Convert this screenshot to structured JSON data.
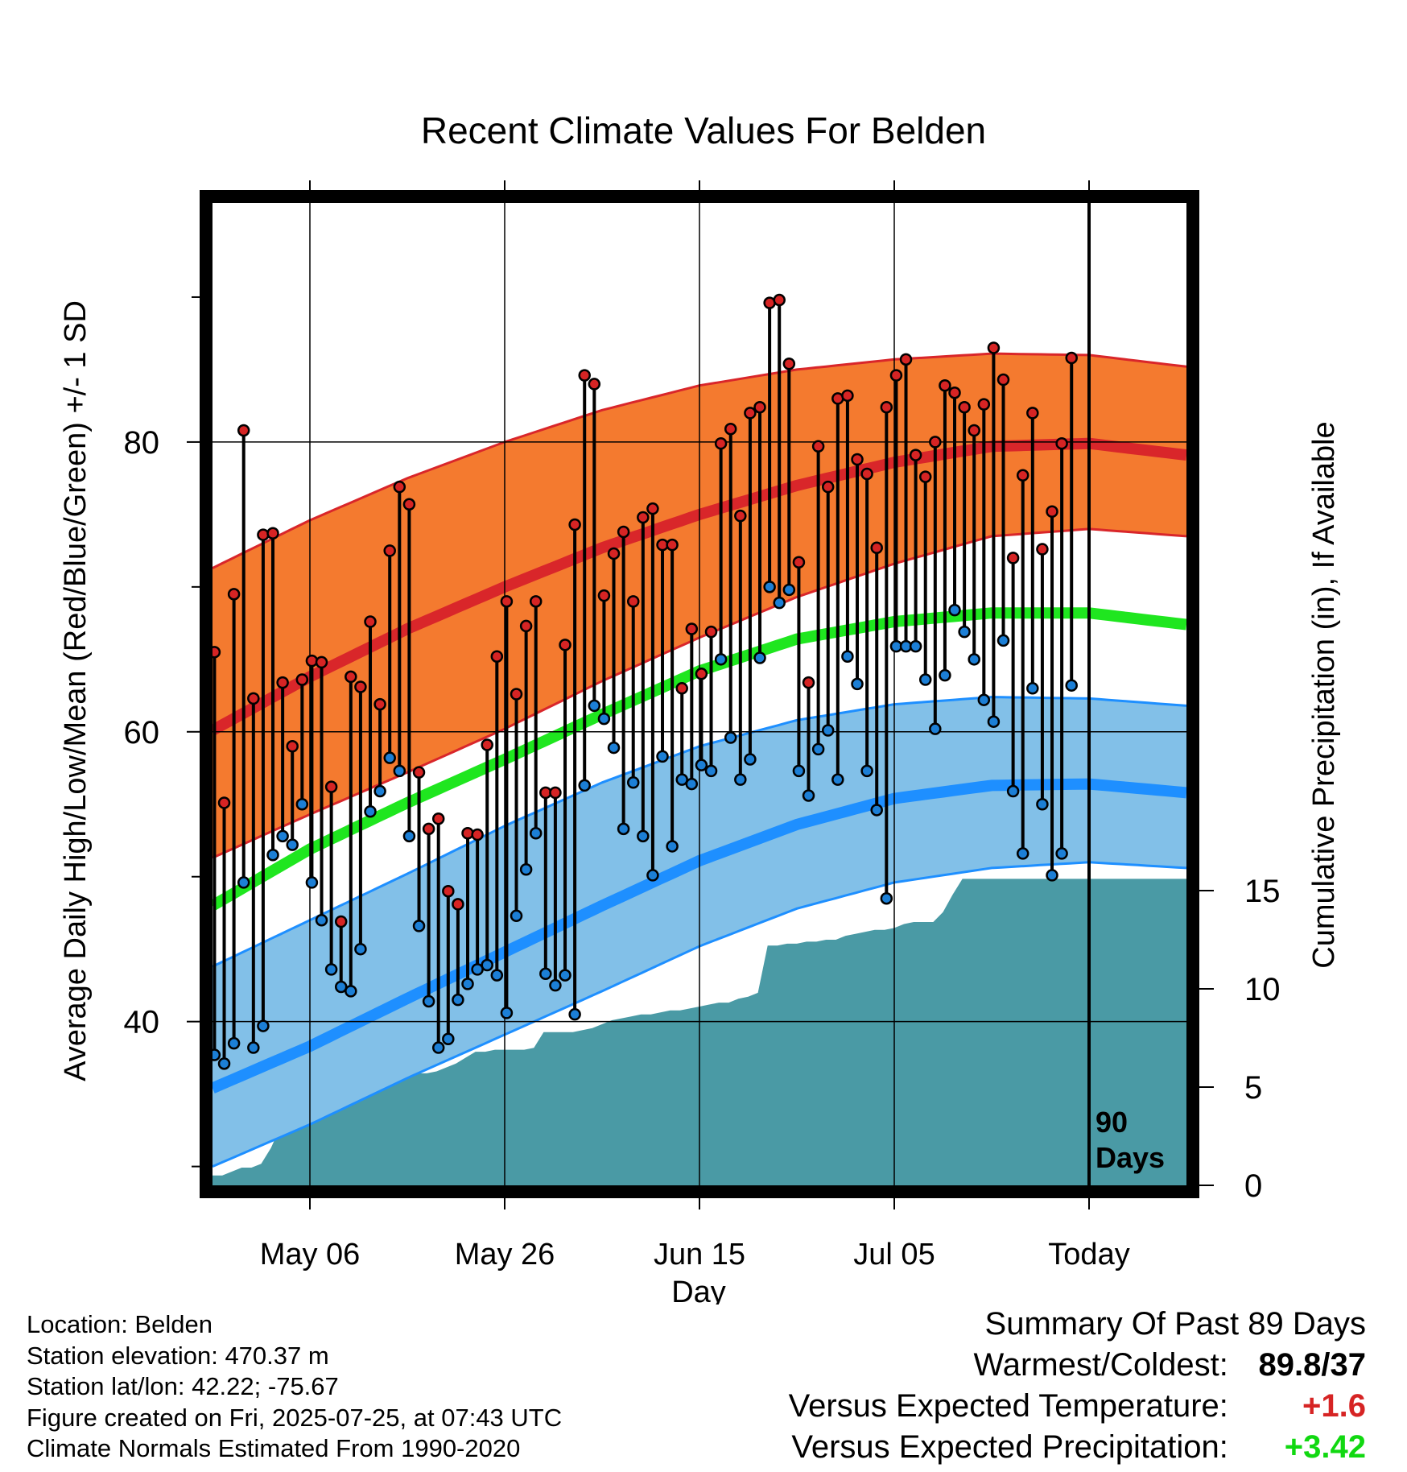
{
  "chart_data": {
    "type": "line",
    "title": "Recent Climate Values For Belden",
    "xlabel": "Day",
    "ylabel": "Average Daily High/Low/Mean (Red/Blue/Green) +/- 1 SD",
    "y2label": "Cumulative Precipitation (in), If Available",
    "x_tick_labels": [
      "May 06",
      "May 26",
      "Jun 15",
      "Jul 05",
      "Today"
    ],
    "y_ticks": [
      40,
      60,
      80
    ],
    "y2_ticks": [
      0,
      5,
      10,
      15
    ],
    "ylim": [
      28.7,
      96.5
    ],
    "y2lim": [
      0,
      50
    ],
    "x_range_days": [
      0,
      100
    ],
    "today_day": 90,
    "today_label": "90 Days",
    "normal_high": [
      60.1,
      63.8,
      67.1,
      70.0,
      72.7,
      75.0,
      77.0,
      78.6,
      79.7,
      79.9,
      79.1
    ],
    "normal_high_upper": [
      71.3,
      74.6,
      77.5,
      80.0,
      82.2,
      83.9,
      85.0,
      85.7,
      86.1,
      86.0,
      85.2
    ],
    "normal_high_lower": [
      51.3,
      54.3,
      57.2,
      60.2,
      63.5,
      66.5,
      69.3,
      71.6,
      73.5,
      74.0,
      73.5
    ],
    "normal_mean": [
      48.0,
      51.9,
      55.1,
      58.1,
      61.2,
      64.2,
      66.4,
      67.6,
      68.2,
      68.2,
      67.4
    ],
    "normal_low": [
      35.4,
      38.3,
      41.6,
      44.8,
      48.0,
      51.1,
      53.6,
      55.4,
      56.3,
      56.4,
      55.8
    ],
    "normal_low_upper": [
      43.8,
      47.0,
      50.2,
      53.5,
      56.5,
      59.0,
      60.8,
      61.9,
      62.4,
      62.3,
      61.8
    ],
    "normal_low_lower": [
      30.0,
      32.9,
      36.1,
      39.1,
      42.1,
      45.2,
      47.8,
      49.6,
      50.6,
      51.0,
      50.6
    ],
    "daily_high": [
      65.5,
      55.1,
      69.5,
      80.8,
      62.3,
      73.6,
      73.7,
      63.4,
      59.0,
      63.6,
      64.9,
      64.8,
      56.2,
      46.9,
      63.8,
      63.1,
      67.6,
      61.9,
      72.5,
      76.9,
      75.7,
      57.2,
      53.3,
      54.0,
      49.0,
      48.1,
      53.0,
      52.9,
      59.1,
      65.2,
      69.0,
      62.6,
      67.3,
      69.0,
      55.8,
      55.8,
      66.0,
      74.3,
      84.6,
      84.0,
      69.4,
      72.3,
      73.8,
      69.0,
      74.8,
      75.4,
      72.9,
      72.9,
      63.0,
      67.1,
      64.0,
      66.9,
      79.9,
      80.9,
      74.9,
      82.0,
      82.4,
      89.6,
      89.8,
      85.4,
      71.7,
      63.4,
      79.7,
      76.9,
      83.0,
      83.2,
      78.8,
      77.8,
      72.7,
      82.4,
      84.6,
      85.7,
      79.1,
      77.6,
      80.0,
      83.9,
      83.4,
      82.4,
      80.8,
      82.6,
      86.5,
      84.3,
      72.0,
      77.7,
      82.0,
      72.6,
      75.2,
      79.9,
      85.8
    ],
    "daily_low": [
      37.7,
      37.1,
      38.5,
      49.6,
      38.2,
      39.7,
      51.5,
      52.8,
      52.2,
      55.0,
      49.6,
      47.0,
      43.6,
      42.4,
      42.1,
      45.0,
      54.5,
      55.9,
      58.2,
      57.3,
      52.8,
      46.6,
      41.4,
      38.2,
      38.8,
      41.5,
      42.6,
      43.6,
      43.9,
      43.2,
      40.6,
      47.3,
      50.5,
      53.0,
      43.3,
      42.5,
      43.2,
      40.5,
      56.3,
      61.8,
      60.9,
      58.9,
      53.3,
      56.5,
      52.8,
      50.1,
      58.3,
      52.1,
      56.7,
      56.4,
      57.7,
      57.3,
      65.0,
      59.6,
      56.7,
      58.1,
      65.1,
      70.0,
      68.9,
      69.8,
      57.3,
      55.6,
      58.8,
      60.1,
      56.7,
      65.2,
      63.3,
      57.3,
      54.6,
      48.5,
      65.9,
      65.9,
      65.9,
      63.6,
      60.2,
      63.9,
      68.4,
      66.9,
      65.0,
      62.2,
      60.7,
      66.3,
      55.9,
      51.6,
      63.0,
      55.0,
      50.1,
      51.6,
      63.2
    ],
    "cumulative_precip": [
      0.5,
      0.5,
      0.7,
      0.9,
      0.9,
      1.1,
      1.9,
      3.0,
      3.8,
      4.4,
      4.6,
      4.6,
      4.9,
      5.1,
      5.1,
      5.1,
      5.2,
      5.4,
      5.5,
      5.6,
      5.7,
      5.7,
      5.7,
      5.8,
      6.0,
      6.2,
      6.5,
      6.8,
      6.8,
      6.9,
      6.9,
      6.9,
      6.9,
      7.0,
      7.8,
      7.8,
      7.8,
      7.8,
      7.9,
      8.0,
      8.2,
      8.4,
      8.5,
      8.6,
      8.7,
      8.7,
      8.8,
      8.9,
      8.9,
      9.0,
      9.1,
      9.2,
      9.3,
      9.3,
      9.5,
      9.6,
      9.8,
      12.2,
      12.2,
      12.3,
      12.3,
      12.4,
      12.4,
      12.5,
      12.5,
      12.7,
      12.8,
      12.9,
      13.0,
      13.0,
      13.1,
      13.3,
      13.4,
      13.4,
      13.4,
      13.9,
      14.8,
      15.6,
      15.6,
      15.6,
      15.6,
      15.6,
      15.6,
      15.6,
      15.6,
      15.6,
      15.6,
      15.6,
      15.6,
      15.6,
      15.6,
      15.6,
      15.6,
      15.6,
      15.6,
      15.6,
      15.6,
      15.6,
      15.6,
      15.6
    ],
    "colors": {
      "high_band": "#f47a2f",
      "high_line": "#d9262a",
      "high_edge": "#d9262a",
      "mean_line": "#1fe61f",
      "low_band": "#82c0e8",
      "low_line": "#1e8fff",
      "low_edge": "#1e8fff",
      "precip": "#4a9aa5",
      "high_marker": "#d62424",
      "low_marker": "#1c7fd6",
      "warm_value": "#d62424",
      "precip_value": "#11d811"
    }
  },
  "info": {
    "location": "Location: Belden",
    "elevation": "Station elevation: 470.37 m",
    "latlon": "Station lat/lon: 42.22; -75.67",
    "created": "Figure created on Fri, 2025-07-25, at 07:43 UTC",
    "normals": "Climate Normals Estimated From 1990-2020"
  },
  "summary": {
    "title": "Summary Of Past 89 Days",
    "warmest_label": "Warmest/Coldest:",
    "warmest_value": "89.8/37",
    "temp_label": "Versus Expected Temperature:",
    "temp_value": "+1.6",
    "precip_label": "Versus Expected Precipitation:",
    "precip_value": "+3.42"
  }
}
